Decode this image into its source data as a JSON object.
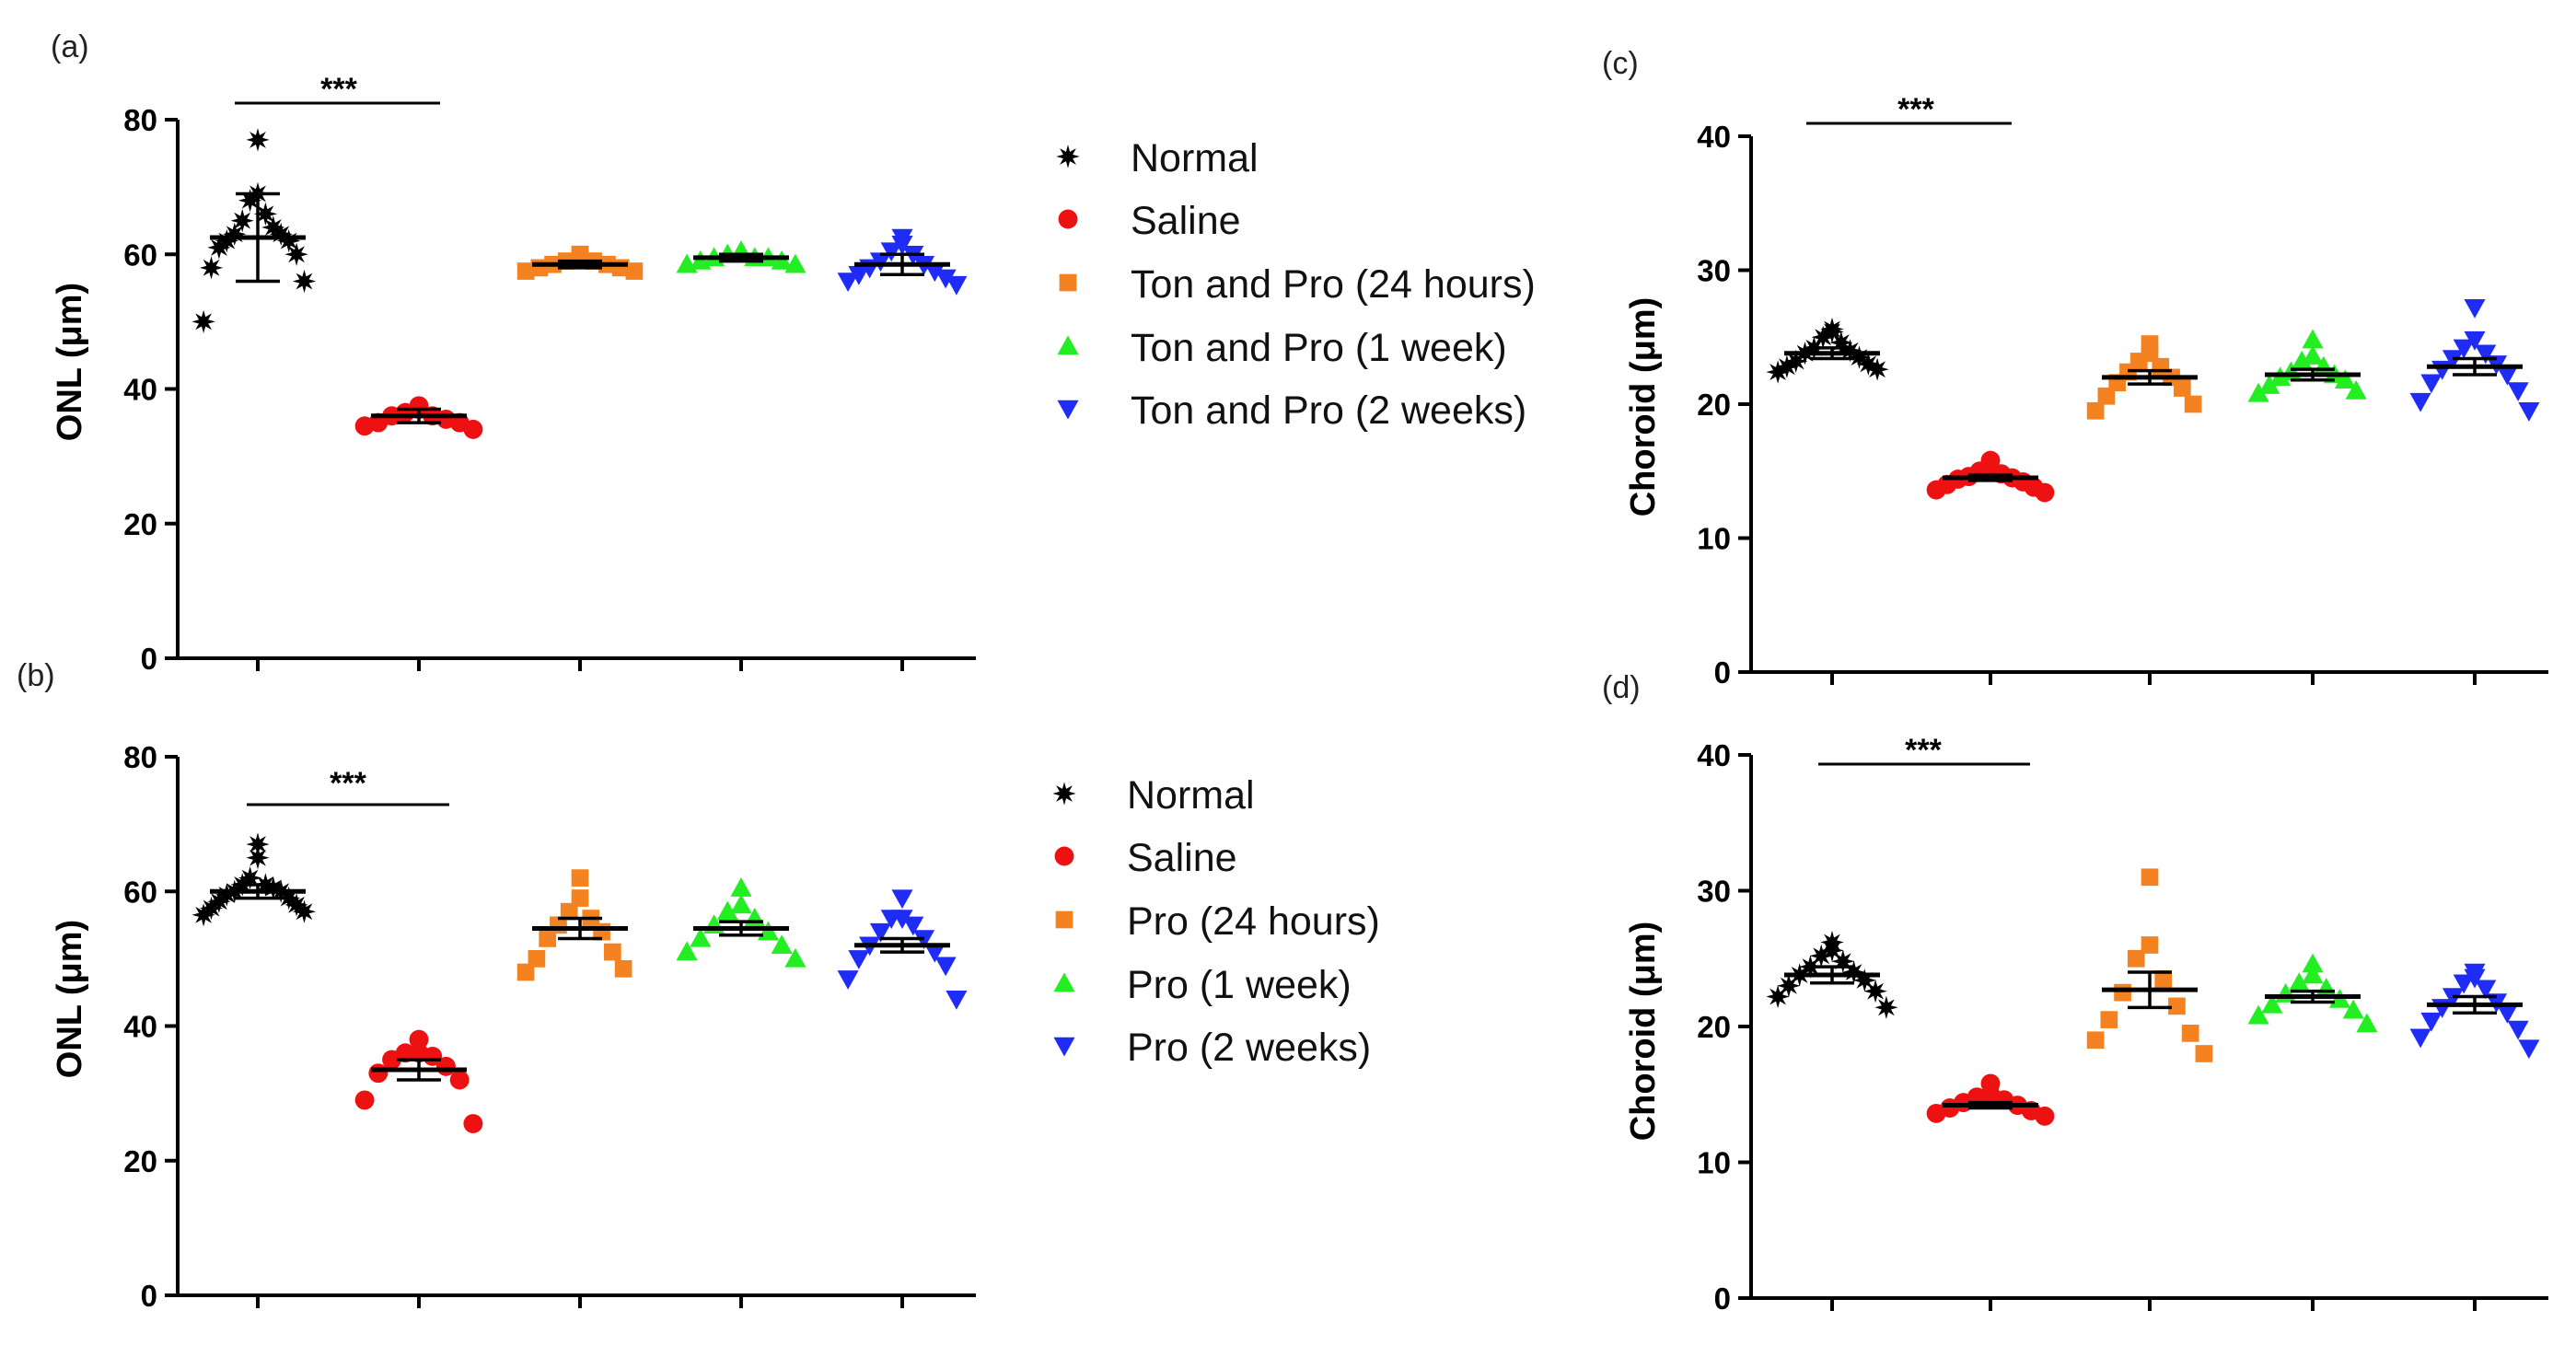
{
  "legend_colors": [
    "#000000",
    "#ee1111",
    "#f58220",
    "#22ee22",
    "#1f2cf5"
  ],
  "legend_markers": [
    "star-icon",
    "circle-icon",
    "square-icon",
    "triangle-up-icon",
    "triangle-down-icon"
  ],
  "legends": [
    [
      "Normal",
      "Saline",
      "Ton and Pro (24 hours)",
      "Ton and Pro (1 week)",
      "Ton and Pro (2 weeks)"
    ],
    [
      "Normal",
      "Saline",
      "Pro (24 hours)",
      "Pro (1 week)",
      "Pro (2 weeks)"
    ]
  ],
  "chart_data": [
    {
      "type": "scatter",
      "panel_label": "(a)",
      "ylabel": "ONL (μm)",
      "xlabel": "",
      "ylim": [
        0,
        80
      ],
      "yticks": [
        0,
        20,
        40,
        60,
        80
      ],
      "significance": "***",
      "series": [
        {
          "name": "Normal",
          "mean": 62.5,
          "err_low": 56,
          "err_high": 69,
          "points": [
            77,
            69,
            68,
            66,
            65,
            64,
            63,
            63,
            62,
            62,
            61,
            60,
            58,
            56,
            50
          ]
        },
        {
          "name": "Saline",
          "mean": 36,
          "err_low": 35,
          "err_high": 37,
          "points": [
            37.5,
            37,
            36.5,
            36,
            36,
            35.5,
            35,
            35,
            34.5,
            34
          ]
        },
        {
          "name": "Ton and Pro (24 hours)",
          "mean": 58.5,
          "err_low": 58,
          "err_high": 59,
          "points": [
            60,
            59.5,
            59,
            59,
            58.5,
            58.5,
            58,
            58,
            57.5,
            57.5
          ]
        },
        {
          "name": "Ton and Pro (1 week)",
          "mean": 59.5,
          "err_low": 59,
          "err_high": 60,
          "points": [
            60.5,
            60,
            60,
            59.5,
            59.5,
            59.5,
            59,
            59,
            58.5,
            58.5
          ]
        },
        {
          "name": "Ton and Pro (2 weeks)",
          "mean": 58.5,
          "err_low": 57,
          "err_high": 60,
          "points": [
            62.5,
            61.5,
            60.5,
            60,
            59,
            58.5,
            58,
            57.5,
            57,
            56.5,
            56,
            55.5
          ]
        }
      ]
    },
    {
      "type": "scatter",
      "panel_label": "(b)",
      "ylabel": "ONL (μm)",
      "xlabel": "",
      "ylim": [
        0,
        80
      ],
      "yticks": [
        0,
        20,
        40,
        60,
        80
      ],
      "significance": "***",
      "series": [
        {
          "name": "Normal",
          "mean": 60,
          "err_low": 59,
          "err_high": 61,
          "points": [
            67,
            65,
            62,
            61,
            61,
            60.5,
            60,
            60,
            59.5,
            59,
            58.5,
            58,
            57.5,
            57,
            56.5
          ]
        },
        {
          "name": "Saline",
          "mean": 33.5,
          "err_low": 32,
          "err_high": 35,
          "points": [
            38,
            36,
            36,
            35.5,
            35,
            34,
            33,
            32,
            29,
            25.5
          ]
        },
        {
          "name": "Pro (24 hours)",
          "mean": 54.5,
          "err_low": 53,
          "err_high": 56,
          "points": [
            62,
            59,
            57,
            56,
            55,
            54,
            53,
            51,
            50,
            48.5,
            48
          ]
        },
        {
          "name": "Pro (1 week)",
          "mean": 54.5,
          "err_low": 53.5,
          "err_high": 55.5,
          "points": [
            60.5,
            58,
            57,
            56,
            55,
            54,
            53,
            52,
            51,
            50
          ]
        },
        {
          "name": "Pro (2 weeks)",
          "mean": 52,
          "err_low": 51,
          "err_high": 53,
          "points": [
            59,
            56,
            56,
            55,
            54,
            53,
            52,
            51,
            50,
            49,
            47,
            44
          ]
        }
      ]
    },
    {
      "type": "scatter",
      "panel_label": "(c)",
      "ylabel": "Choroid (μm)",
      "xlabel": "",
      "ylim": [
        0,
        40
      ],
      "yticks": [
        0,
        10,
        20,
        30,
        40
      ],
      "significance": "***",
      "series": [
        {
          "name": "Normal",
          "mean": 23.8,
          "err_low": 23.4,
          "err_high": 24.2,
          "points": [
            25.6,
            25.4,
            25,
            24.6,
            24.2,
            24,
            23.8,
            23.5,
            23.2,
            23,
            22.8,
            22.6,
            22.4
          ]
        },
        {
          "name": "Saline",
          "mean": 14.5,
          "err_low": 14.3,
          "err_high": 14.7,
          "points": [
            15.8,
            15.2,
            15,
            14.8,
            14.6,
            14.5,
            14.4,
            14.2,
            14,
            13.8,
            13.6,
            13.4
          ]
        },
        {
          "name": "Ton and Pro (24 hours)",
          "mean": 22,
          "err_low": 21.5,
          "err_high": 22.5,
          "points": [
            24.5,
            23.8,
            23.2,
            22.8,
            22.4,
            22,
            21.6,
            21.2,
            20.6,
            20,
            19.5
          ]
        },
        {
          "name": "Ton and Pro (1 week)",
          "mean": 22.2,
          "err_low": 21.8,
          "err_high": 22.6,
          "points": [
            24.8,
            23.6,
            23.2,
            22.8,
            22.4,
            22.2,
            22,
            21.8,
            21.4,
            21,
            20.8
          ]
        },
        {
          "name": "Ton and Pro (2 weeks)",
          "mean": 22.8,
          "err_low": 22.2,
          "err_high": 23.4,
          "points": [
            27.2,
            24.8,
            24.2,
            23.8,
            23.4,
            23,
            22.6,
            22.2,
            21.6,
            21,
            20.2,
            19.5
          ]
        }
      ]
    },
    {
      "type": "scatter",
      "panel_label": "(d)",
      "ylabel": "Choroid (μm)",
      "xlabel": "",
      "ylim": [
        0,
        40
      ],
      "yticks": [
        0,
        10,
        20,
        30,
        40
      ],
      "significance": "***",
      "series": [
        {
          "name": "Normal",
          "mean": 23.8,
          "err_low": 23.2,
          "err_high": 24.4,
          "points": [
            26.2,
            25.6,
            25.2,
            24.8,
            24.4,
            24,
            23.8,
            23.4,
            23,
            22.6,
            22.2,
            21.4
          ]
        },
        {
          "name": "Saline",
          "mean": 14.2,
          "err_low": 14,
          "err_high": 14.4,
          "points": [
            15.8,
            15,
            14.8,
            14.6,
            14.4,
            14.2,
            14,
            13.8,
            13.6,
            13.4
          ]
        },
        {
          "name": "Pro (24 hours)",
          "mean": 22.7,
          "err_low": 21.4,
          "err_high": 24,
          "points": [
            31,
            26,
            25,
            23.5,
            22.5,
            21.5,
            20.5,
            19.5,
            19,
            18
          ]
        },
        {
          "name": "Pro (1 week)",
          "mean": 22.2,
          "err_low": 21.8,
          "err_high": 22.6,
          "points": [
            24.6,
            23.8,
            23.2,
            22.8,
            22.4,
            22,
            21.6,
            21.2,
            20.8,
            20.2
          ]
        },
        {
          "name": "Pro (2 weeks)",
          "mean": 21.6,
          "err_low": 21,
          "err_high": 22.2,
          "points": [
            24,
            23.6,
            23.2,
            22.8,
            22.2,
            21.8,
            21.4,
            21,
            20.4,
            19.8,
            19.2,
            18.4
          ]
        }
      ]
    }
  ]
}
